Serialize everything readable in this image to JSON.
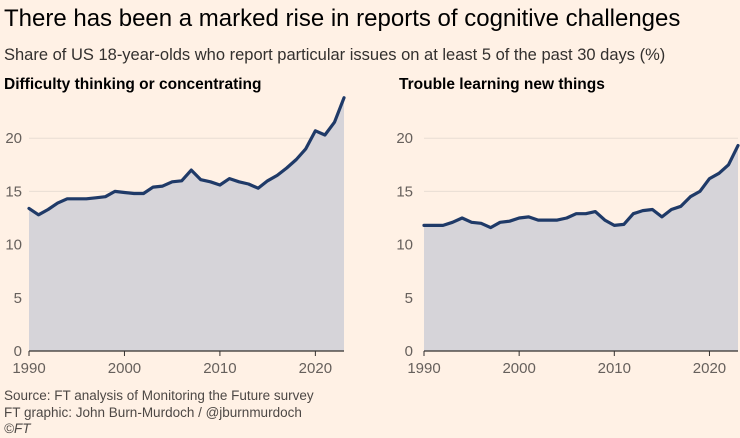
{
  "header": {
    "title": "There has been a marked rise in reports of cognitive challenges",
    "subtitle": "Share of US 18-year-olds who report particular issues on at least 5 of the past 30 days (%)"
  },
  "footer": {
    "source": "Source: FT analysis of Monitoring the Future survey",
    "credit": "FT graphic: John Burn-Murdoch / @jburnmurdoch",
    "copyright": "©FT"
  },
  "colors": {
    "background": "#fff1e5",
    "line": "#1f3a68",
    "area": "#d6d4d9",
    "grid": "#e8ddd3"
  },
  "chart_data": [
    {
      "type": "area",
      "title": "Difficulty thinking or concentrating",
      "xlim": [
        1990,
        2023
      ],
      "ylim": [
        0,
        25
      ],
      "x_ticks": [
        1990,
        2000,
        2010,
        2020
      ],
      "y_ticks": [
        0,
        5,
        10,
        15,
        20
      ],
      "grid": true,
      "x": [
        1990,
        1991,
        1992,
        1993,
        1994,
        1995,
        1996,
        1997,
        1998,
        1999,
        2000,
        2001,
        2002,
        2003,
        2004,
        2005,
        2006,
        2007,
        2008,
        2009,
        2010,
        2011,
        2012,
        2013,
        2014,
        2015,
        2016,
        2017,
        2018,
        2019,
        2020,
        2021,
        2022,
        2023
      ],
      "y": [
        13.4,
        12.8,
        13.3,
        13.9,
        14.3,
        14.3,
        14.3,
        14.4,
        14.5,
        15.0,
        14.9,
        14.8,
        14.8,
        15.4,
        15.5,
        15.9,
        16.0,
        17.0,
        16.1,
        15.9,
        15.6,
        16.2,
        15.9,
        15.7,
        15.3,
        16.0,
        16.5,
        17.2,
        18.0,
        19.0,
        20.7,
        20.3,
        21.5,
        23.8
      ]
    },
    {
      "type": "area",
      "title": "Trouble learning new things",
      "xlim": [
        1990,
        2023
      ],
      "ylim": [
        0,
        25
      ],
      "x_ticks": [
        1990,
        2000,
        2010,
        2020
      ],
      "y_ticks": [
        0,
        5,
        10,
        15,
        20
      ],
      "grid": true,
      "x": [
        1990,
        1991,
        1992,
        1993,
        1994,
        1995,
        1996,
        1997,
        1998,
        1999,
        2000,
        2001,
        2002,
        2003,
        2004,
        2005,
        2006,
        2007,
        2008,
        2009,
        2010,
        2011,
        2012,
        2013,
        2014,
        2015,
        2016,
        2017,
        2018,
        2019,
        2020,
        2021,
        2022,
        2023
      ],
      "y": [
        11.8,
        11.8,
        11.8,
        12.1,
        12.5,
        12.1,
        12.0,
        11.6,
        12.1,
        12.2,
        12.5,
        12.6,
        12.3,
        12.3,
        12.3,
        12.5,
        12.9,
        12.9,
        13.1,
        12.3,
        11.8,
        11.9,
        12.9,
        13.2,
        13.3,
        12.6,
        13.3,
        13.6,
        14.5,
        15.0,
        16.2,
        16.7,
        17.5,
        19.3
      ]
    }
  ]
}
